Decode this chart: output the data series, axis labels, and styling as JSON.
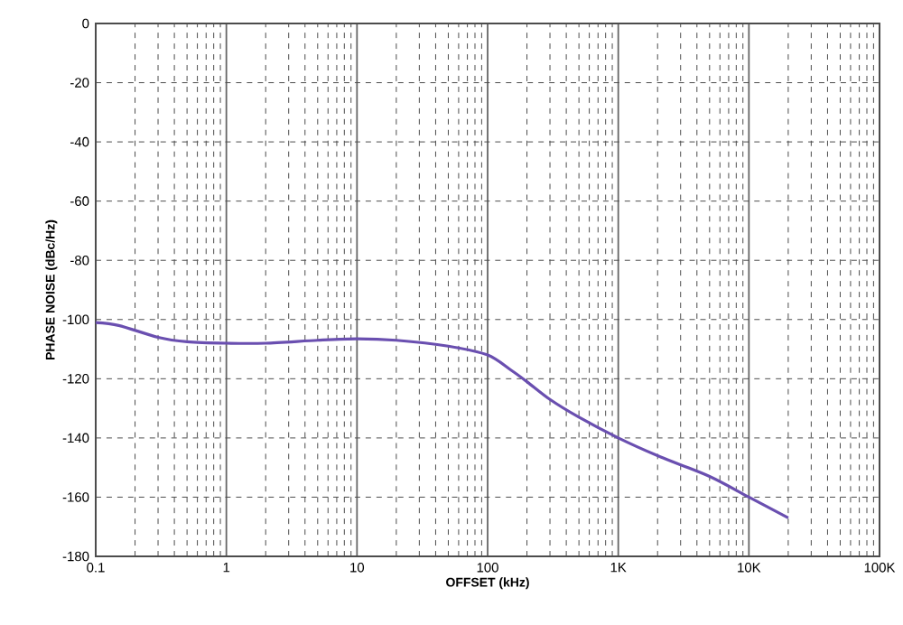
{
  "chart_data": {
    "type": "line",
    "xlabel": "OFFSET (kHz)",
    "ylabel": "PHASE NOISE (dBc/Hz)",
    "log": "x",
    "x": [
      0.1,
      0.15,
      0.3,
      0.5,
      1,
      2,
      5,
      10,
      20,
      50,
      100,
      150,
      200,
      300,
      500,
      1000,
      2000,
      5000,
      10000,
      20000
    ],
    "series": [
      {
        "color": "#6a4fb0",
        "values": [
          -101,
          -102,
          -106,
          -107.5,
          -108,
          -108,
          -107,
          -106.5,
          -107,
          -109,
          -112,
          -117,
          -121,
          -127,
          -133,
          -140,
          -146,
          -153,
          -160,
          -167
        ]
      }
    ],
    "xlim": [
      0.1,
      100000
    ],
    "ylim": [
      -180,
      0
    ],
    "xticks": [
      0.1,
      1,
      10,
      100,
      {
        "value": 1000,
        "label": "1K"
      },
      {
        "value": 10000,
        "label": "10K"
      },
      {
        "value": 100000,
        "label": "100K"
      }
    ],
    "yticks": [
      -180,
      -160,
      -140,
      -120,
      -100,
      -80,
      -60,
      -40,
      -20,
      0
    ],
    "grid": true,
    "line_style": "solid",
    "marker": "none"
  }
}
